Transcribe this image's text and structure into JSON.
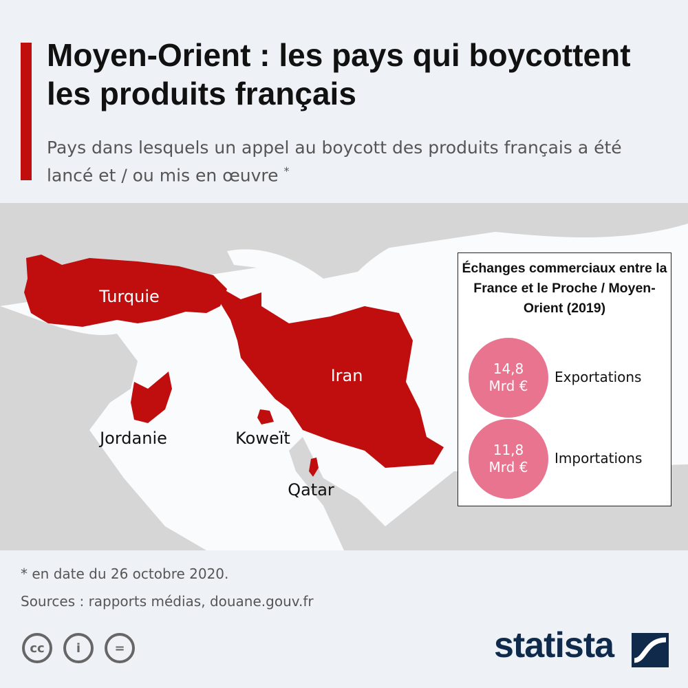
{
  "header": {
    "title": "Moyen-Orient : les pays qui boycottent les produits français",
    "subtitle": "Pays dans lesquels un appel au boycott des produits français a été lancé et / ou mis en œuvre",
    "subtitle_mark": "*"
  },
  "map": {
    "labels": [
      "Turquie",
      "Iran",
      "Jordanie",
      "Koweït",
      "Qatar"
    ]
  },
  "infobox": {
    "title": "Échanges commerciaux entre la France et le Proche / Moyen-Orient (2019)",
    "items": [
      {
        "amount": "14,8",
        "unit": "Mrd €",
        "label": "Exportations"
      },
      {
        "amount": "11,8",
        "unit": "Mrd €",
        "label": "Importations"
      }
    ]
  },
  "footer": {
    "note": "* en date du 26 octobre 2020.",
    "sources": "Sources : rapports médias, douane.gouv.fr",
    "brand": "statista",
    "license_icons": [
      "cc",
      "i",
      "="
    ]
  }
}
